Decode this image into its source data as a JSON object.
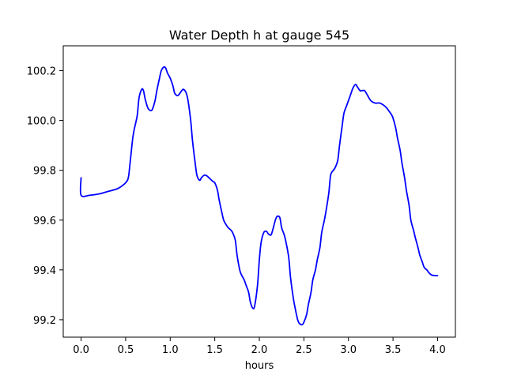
{
  "chart_data": {
    "type": "line",
    "title": "Water Depth h at gauge 545",
    "xlabel": "hours",
    "ylabel": "",
    "xlim": [
      -0.2,
      4.2
    ],
    "ylim": [
      99.13,
      100.3
    ],
    "xticks": [
      0.0,
      0.5,
      1.0,
      1.5,
      2.0,
      2.5,
      3.0,
      3.5,
      4.0
    ],
    "xtick_labels": [
      "0.0",
      "0.5",
      "1.0",
      "1.5",
      "2.0",
      "2.5",
      "3.0",
      "3.5",
      "4.0"
    ],
    "yticks": [
      99.2,
      99.4,
      99.6,
      99.8,
      100.0,
      100.2
    ],
    "ytick_labels": [
      "99.2",
      "99.4",
      "99.6",
      "99.8",
      "100.0",
      "100.2"
    ],
    "grid": false,
    "legend": "none",
    "series": [
      {
        "color": "#0000ff",
        "x": [
          0.0,
          0.0,
          0.1,
          0.2,
          0.3,
          0.4,
          0.45,
          0.5,
          0.53,
          0.55,
          0.58,
          0.6,
          0.63,
          0.65,
          0.68,
          0.7,
          0.72,
          0.75,
          0.78,
          0.8,
          0.83,
          0.85,
          0.88,
          0.9,
          0.93,
          0.95,
          0.97,
          1.0,
          1.03,
          1.05,
          1.08,
          1.1,
          1.13,
          1.15,
          1.18,
          1.2,
          1.23,
          1.25,
          1.28,
          1.3,
          1.33,
          1.35,
          1.38,
          1.4,
          1.42,
          1.45,
          1.48,
          1.5,
          1.53,
          1.55,
          1.58,
          1.6,
          1.63,
          1.65,
          1.68,
          1.7,
          1.73,
          1.75,
          1.78,
          1.8,
          1.83,
          1.85,
          1.88,
          1.9,
          1.93,
          1.95,
          1.98,
          2.0,
          2.02,
          2.05,
          2.08,
          2.1,
          2.13,
          2.15,
          2.18,
          2.2,
          2.23,
          2.25,
          2.28,
          2.3,
          2.33,
          2.35,
          2.38,
          2.4,
          2.43,
          2.45,
          2.48,
          2.5,
          2.53,
          2.55,
          2.58,
          2.6,
          2.63,
          2.65,
          2.68,
          2.7,
          2.73,
          2.75,
          2.78,
          2.8,
          2.83,
          2.85,
          2.88,
          2.9,
          2.93,
          2.95,
          2.98,
          3.0,
          3.03,
          3.05,
          3.08,
          3.1,
          3.13,
          3.15,
          3.18,
          3.2,
          3.25,
          3.3,
          3.35,
          3.4,
          3.43,
          3.45,
          3.48,
          3.5,
          3.53,
          3.55,
          3.58,
          3.6,
          3.63,
          3.65,
          3.68,
          3.7,
          3.73,
          3.75,
          3.78,
          3.8,
          3.83,
          3.85,
          3.88,
          3.9,
          3.93,
          3.95,
          3.98,
          4.0
        ],
        "y": [
          99.77,
          99.7,
          99.7,
          99.705,
          99.715,
          99.725,
          99.735,
          99.75,
          99.77,
          99.83,
          99.93,
          99.97,
          100.02,
          100.09,
          100.125,
          100.12,
          100.085,
          100.05,
          100.04,
          100.045,
          100.08,
          100.12,
          100.17,
          100.2,
          100.215,
          100.21,
          100.19,
          100.17,
          100.14,
          100.11,
          100.1,
          100.105,
          100.12,
          100.125,
          100.11,
          100.08,
          100.0,
          99.92,
          99.83,
          99.78,
          99.76,
          99.77,
          99.78,
          99.78,
          99.775,
          99.765,
          99.755,
          99.75,
          99.72,
          99.68,
          99.63,
          99.6,
          99.58,
          99.57,
          99.56,
          99.55,
          99.52,
          99.46,
          99.4,
          99.38,
          99.36,
          99.34,
          99.31,
          99.27,
          99.245,
          99.26,
          99.34,
          99.44,
          99.51,
          99.55,
          99.555,
          99.545,
          99.54,
          99.56,
          99.6,
          99.615,
          99.61,
          99.57,
          99.54,
          99.51,
          99.45,
          99.37,
          99.29,
          99.25,
          99.2,
          99.185,
          99.18,
          99.19,
          99.22,
          99.26,
          99.31,
          99.36,
          99.4,
          99.44,
          99.49,
          99.55,
          99.6,
          99.64,
          99.71,
          99.78,
          99.8,
          99.81,
          99.84,
          99.9,
          99.98,
          100.03,
          100.06,
          100.08,
          100.11,
          100.13,
          100.145,
          100.135,
          100.12,
          100.12,
          100.12,
          100.11,
          100.08,
          100.07,
          100.07,
          100.06,
          100.05,
          100.04,
          100.025,
          100.01,
          99.97,
          99.93,
          99.88,
          99.83,
          99.77,
          99.72,
          99.66,
          99.6,
          99.56,
          99.53,
          99.49,
          99.46,
          99.43,
          99.41,
          99.4,
          99.39,
          99.38,
          99.378,
          99.377,
          99.377
        ]
      }
    ]
  }
}
